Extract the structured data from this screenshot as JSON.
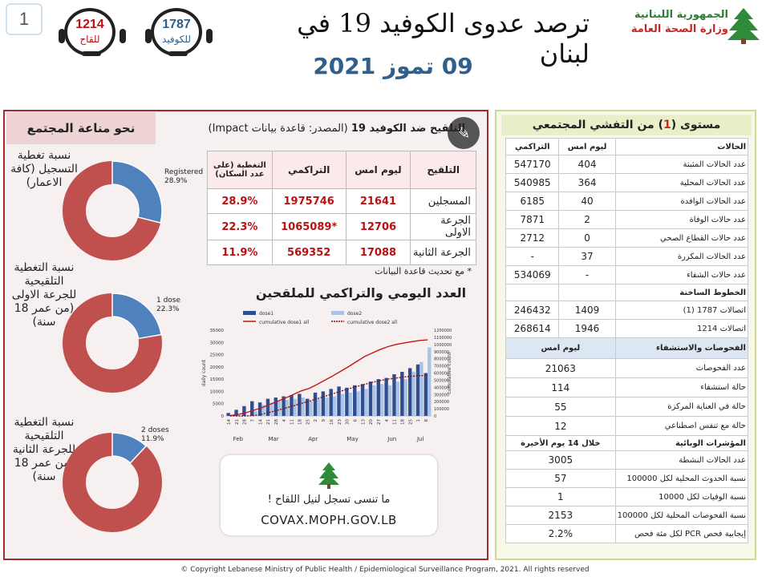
{
  "page_number": "1",
  "header": {
    "title": "ترصد عدوى الكوفيد 19 في لبنان",
    "date": "09 تموز 2021",
    "ministry_line1": "الجمهورية اللبنانية",
    "ministry_line2": "وزارة الصحة العامة",
    "hotline_covid": {
      "number": "1787",
      "label": "للكوفيد"
    },
    "hotline_vaccine": {
      "number": "1214",
      "label": "للقاح"
    }
  },
  "immunity": {
    "title": "نحو مناعة المجتمع",
    "donuts": [
      {
        "caption": "نسبة تغطية التسجيل (كافة الاعمار)",
        "label": "Registered",
        "percent_text": "28.9%",
        "fraction": 0.289
      },
      {
        "caption": "نسبة التغطية التلقيحية للجرعة الاولى (من عمر 18 سنة)",
        "label": "1 dose",
        "percent_text": "22.3%",
        "fraction": 0.223
      },
      {
        "caption": "نسبة التغطية التلقيحية للجرعة الثانية (من عمر 18 سنة)",
        "label": "2 doses",
        "percent_text": "11.9%",
        "fraction": 0.119
      }
    ]
  },
  "vaccination": {
    "title_bold": "التلقيح ضد الكوفيد 19",
    "title_rest": " (المصدر: قاعدة بيانات Impact)",
    "columns": [
      "التلقيح",
      "ليوم امس",
      "التراكمي",
      "التغطية (على عدد السكان)"
    ],
    "rows": [
      [
        "المسجلين",
        "21641",
        "1975746",
        "28.9%"
      ],
      [
        "الجرعة الاولى",
        "12706",
        "*1065089",
        "22.3%"
      ],
      [
        "الجرعة الثانية",
        "17088",
        "569352",
        "11.9%"
      ]
    ],
    "note": "* مع تحديث قاعدة البيانات"
  },
  "chart_data": {
    "type": "bar",
    "title": "العدد اليومي والتراكمي للملقحين",
    "ylabel": "daily count",
    "ylabel_right": "cumulative count",
    "ylim": [
      0,
      35000
    ],
    "ylim_right": [
      0,
      1200000
    ],
    "yticks": [
      0,
      5000,
      10000,
      15000,
      20000,
      25000,
      30000,
      35000
    ],
    "yticks_right": [
      0,
      100000,
      200000,
      300000,
      400000,
      500000,
      600000,
      700000,
      800000,
      900000,
      1000000,
      1100000,
      1200000
    ],
    "xticks": [
      "14",
      "21",
      "28",
      "7",
      "14",
      "21",
      "28",
      "4",
      "11",
      "18",
      "25",
      "2",
      "9",
      "16",
      "23",
      "30",
      "6",
      "13",
      "20",
      "27",
      "4",
      "11",
      "18",
      "25",
      "1",
      "8"
    ],
    "month_labels": [
      "Feb",
      "Mar",
      "Apr",
      "May",
      "Jun",
      "Jul"
    ],
    "legend": [
      "dose1",
      "dose2",
      "cumulative dose1 all",
      "cumulative dose2 all"
    ],
    "colors": {
      "dose1": "#2f4d8f",
      "dose2": "#aac4e6",
      "cum1": "#c01818",
      "cum2": "#8a1010"
    },
    "series": [
      {
        "name": "dose1",
        "values": [
          1200,
          2500,
          4000,
          6000,
          5500,
          7000,
          7500,
          8000,
          8500,
          9000,
          7000,
          9500,
          10000,
          11000,
          12000,
          11500,
          12500,
          13000,
          14000,
          15000,
          15500,
          17000,
          18000,
          19500,
          21000,
          17500
        ]
      },
      {
        "name": "dose2",
        "values": [
          0,
          0,
          0,
          2000,
          4500,
          5500,
          6000,
          6500,
          7000,
          7500,
          6000,
          7000,
          7500,
          8000,
          9000,
          9500,
          10000,
          11000,
          12500,
          13000,
          12500,
          14000,
          15000,
          18000,
          22000,
          28000
        ]
      },
      {
        "name": "cumulative dose1 all",
        "values": [
          5000,
          20000,
          45000,
          80000,
          115000,
          160000,
          205000,
          250000,
          300000,
          350000,
          385000,
          440000,
          500000,
          560000,
          625000,
          690000,
          760000,
          830000,
          880000,
          930000,
          970000,
          1000000,
          1020000,
          1040000,
          1055000,
          1065089
        ]
      },
      {
        "name": "cumulative dose2 all",
        "values": [
          0,
          0,
          0,
          5000,
          25000,
          50000,
          80000,
          110000,
          140000,
          175000,
          205000,
          240000,
          275000,
          310000,
          345000,
          380000,
          410000,
          440000,
          470000,
          495000,
          515000,
          530000,
          545000,
          555000,
          563000,
          569352
        ]
      }
    ]
  },
  "promo": {
    "line1": "ما تنسى تسجل لنيل اللقاح !",
    "line2": "COVAX.MOPH.GOV.LB"
  },
  "community": {
    "title_pre": "مستوى (",
    "title_num": "1",
    "title_post": ") من التفشي المجتمعي",
    "cases_header": [
      "الحالات",
      "ليوم امس",
      "التراكمي"
    ],
    "cases": [
      [
        "عدد الحالات المثبتة",
        "404",
        "547170"
      ],
      [
        "عدد الحالات المحلية",
        "364",
        "540985"
      ],
      [
        "عدد الحالات الوافدة",
        "40",
        "6185"
      ],
      [
        "عدد حالات الوفاة",
        "2",
        "7871"
      ],
      [
        "عدد حالات القطاع الصحي",
        "0",
        "2712"
      ],
      [
        "عدد الحالات المكررة",
        "37",
        "-"
      ],
      [
        "عدد حالات الشفاء",
        "-",
        "534069"
      ]
    ],
    "hotlines_header": "الخطوط الساخنة",
    "hotlines": [
      [
        "اتصالات 1787 (1)",
        "1409",
        "246432"
      ],
      [
        "اتصالات 1214",
        "1946",
        "268614"
      ]
    ],
    "tests_header": [
      "الفحوصات والاستشفاء",
      "ليوم امس"
    ],
    "tests": [
      [
        "عدد الفحوصات",
        "21063"
      ],
      [
        "حالة استشفاء",
        "114"
      ],
      [
        "حالة في العناية المركزة",
        "55"
      ],
      [
        "حالة مع تنفس اصطناعي",
        "12"
      ]
    ],
    "epi_header": [
      "المؤشرات الوبائية",
      "خلال 14 يوم الأخيرة"
    ],
    "epi": [
      [
        "عدد الحالات النشطة",
        "3005"
      ],
      [
        "نسبة الحدوث المحلية لكل 100000",
        "57"
      ],
      [
        "نسبة الوفيات لكل 10000",
        "1"
      ],
      [
        "نسبة الفحوصات المحلية لكل 100000",
        "2153"
      ],
      [
        "إيجابية فحص PCR لكل مئة فحص",
        "2.2%"
      ]
    ]
  },
  "footer": "© Copyright Lebanese Ministry of Public Health / Epidemiological Surveillance Program, 2021. All rights reserved"
}
